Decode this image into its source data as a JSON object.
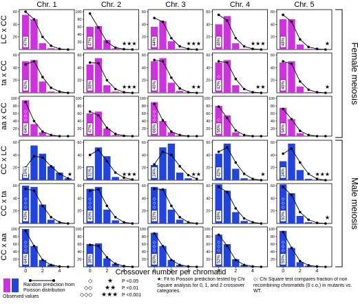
{
  "colors": {
    "female": "#cc33dd",
    "male": "#2244dd",
    "poisson": "#000000"
  },
  "columns": [
    "Chr. 1",
    "Chr. 2",
    "Chr. 3",
    "Chr. 4",
    "Chr. 5"
  ],
  "sex_labels": {
    "female": "Female meiosis",
    "male": "Male meiosis"
  },
  "x_label": "Crossover number per chromatid",
  "legend": {
    "observed": "Observed values",
    "poisson": "Random prediction from Poisson distribution",
    "p1": "P <0.05",
    "p2": "P <0.01",
    "p3": "P <0.001",
    "star_note": "★: Fit to Poisson prediction tested by Chi Square analysis for 0, 1, and 2 crossover categories.",
    "diamond_note": "◇: Chi Square test compares fraction of non recombining chromatids (0 c.o.) in mutants vs. WT."
  },
  "chart_data": {
    "type": "bar",
    "layout_note": "6 rows (crosses) x 5 columns (chromosomes); each panel: bars = observed counts, line+dots = Poisson prediction",
    "x_ticks": [
      0,
      2,
      4
    ],
    "x": [
      0,
      1,
      2,
      3,
      4,
      5
    ],
    "panels": [
      {
        "row": "LC x CC",
        "sex": "female",
        "col": "Chr. 1",
        "ylim": [
          0,
          60
        ],
        "yticks": [
          "20",
          "40",
          "60"
        ],
        "observed": [
          55,
          48,
          10,
          2,
          0,
          0
        ],
        "poisson": [
          60,
          48,
          20,
          6,
          1,
          0
        ],
        "pct": "47%",
        "stars": "",
        "diamonds": ""
      },
      {
        "row": "LC x CC",
        "sex": "female",
        "col": "Chr. 2",
        "ylim": [
          0,
          100
        ],
        "yticks": [
          "20",
          "40",
          "60",
          "80",
          "100"
        ],
        "observed": [
          60,
          62,
          25,
          3,
          1,
          0
        ],
        "poisson": [
          95,
          58,
          20,
          5,
          1,
          0
        ],
        "pct": "47%",
        "stars": "★★★",
        "diamonds": ""
      },
      {
        "row": "LC x CC",
        "sex": "female",
        "col": "Chr. 3",
        "ylim": [
          0,
          60
        ],
        "yticks": [
          "20",
          "40",
          "60"
        ],
        "observed": [
          36,
          45,
          13,
          1,
          0,
          0
        ],
        "poisson": [
          50,
          44,
          18,
          5,
          1,
          0
        ],
        "pct": "44%",
        "stars": "★★★",
        "diamonds": ""
      },
      {
        "row": "LC x CC",
        "sex": "female",
        "col": "Chr. 4",
        "ylim": [
          0,
          60
        ],
        "yticks": [
          "20",
          "40",
          "60"
        ],
        "observed": [
          40,
          53,
          10,
          1,
          0,
          0
        ],
        "poisson": [
          55,
          46,
          18,
          5,
          1,
          0
        ],
        "pct": "46%",
        "stars": "★★★",
        "diamonds": ""
      },
      {
        "row": "LC x CC",
        "sex": "female",
        "col": "Chr. 5",
        "ylim": [
          0,
          60
        ],
        "yticks": [
          "20",
          "40",
          "60"
        ],
        "observed": [
          48,
          48,
          8,
          1,
          0,
          0
        ],
        "poisson": [
          55,
          44,
          16,
          4,
          1,
          0
        ],
        "pct": "48%",
        "stars": "★",
        "diamonds": ""
      },
      {
        "row": "ta x CC",
        "sex": "female",
        "col": "Chr. 1",
        "ylim": [
          0,
          60
        ],
        "yticks": [
          "20",
          "40",
          "60"
        ],
        "observed": [
          50,
          52,
          18,
          2,
          0,
          0
        ],
        "poisson": [
          45,
          50,
          25,
          8,
          2,
          0
        ],
        "pct": "42%",
        "stars": "",
        "diamonds": ""
      },
      {
        "row": "ta x CC",
        "sex": "female",
        "col": "Chr. 2",
        "ylim": [
          0,
          60
        ],
        "yticks": [
          "20",
          "40",
          "60"
        ],
        "observed": [
          45,
          55,
          12,
          2,
          0,
          0
        ],
        "poisson": [
          48,
          47,
          20,
          6,
          1,
          0
        ],
        "pct": "38%",
        "stars": "★★★",
        "diamonds": ""
      },
      {
        "row": "ta x CC",
        "sex": "female",
        "col": "Chr. 3",
        "ylim": [
          0,
          60
        ],
        "yticks": [
          "20",
          "40",
          "60"
        ],
        "observed": [
          50,
          55,
          16,
          3,
          0,
          0
        ],
        "poisson": [
          52,
          50,
          24,
          7,
          1,
          0
        ],
        "pct": "49%",
        "stars": "★★",
        "diamonds": ""
      },
      {
        "row": "ta x CC",
        "sex": "female",
        "col": "Chr. 4",
        "ylim": [
          0,
          60
        ],
        "yticks": [
          "20",
          "40",
          "60"
        ],
        "observed": [
          48,
          52,
          12,
          1,
          0,
          0
        ],
        "poisson": [
          50,
          48,
          22,
          6,
          1,
          0
        ],
        "pct": "42%",
        "stars": "★★",
        "diamonds": "◇"
      },
      {
        "row": "ta x CC",
        "sex": "female",
        "col": "Chr. 5",
        "ylim": [
          0,
          60
        ],
        "yticks": [
          "20",
          "40",
          "60"
        ],
        "observed": [
          48,
          50,
          10,
          1,
          0,
          0
        ],
        "poisson": [
          50,
          46,
          18,
          5,
          1,
          0
        ],
        "pct": "49%",
        "stars": "★",
        "diamonds": ""
      },
      {
        "row": "aa x CC",
        "sex": "female",
        "col": "Chr. 1",
        "ylim": [
          0,
          100
        ],
        "yticks": [
          "20",
          "40",
          "60",
          "80",
          "100"
        ],
        "observed": [
          95,
          32,
          10,
          2,
          0,
          0
        ],
        "poisson": [
          90,
          40,
          12,
          3,
          0,
          0
        ],
        "pct": "64%",
        "stars": "",
        "diamonds": "◇◇◇"
      },
      {
        "row": "aa x CC",
        "sex": "female",
        "col": "Chr. 2",
        "ylim": [
          0,
          100
        ],
        "yticks": [
          "20",
          "40",
          "60",
          "80",
          "100"
        ],
        "observed": [
          60,
          65,
          20,
          3,
          0,
          0
        ],
        "poisson": [
          65,
          55,
          22,
          6,
          1,
          0
        ],
        "pct": "47%",
        "stars": "",
        "diamonds": ""
      },
      {
        "row": "aa x CC",
        "sex": "female",
        "col": "Chr. 3",
        "ylim": [
          0,
          100
        ],
        "yticks": [
          "20",
          "40",
          "60",
          "80",
          "100"
        ],
        "observed": [
          90,
          40,
          10,
          2,
          0,
          0
        ],
        "poisson": [
          85,
          42,
          12,
          3,
          0,
          0
        ],
        "pct": "66%",
        "stars": "",
        "diamonds": "◇◇◇"
      },
      {
        "row": "aa x CC",
        "sex": "female",
        "col": "Chr. 4",
        "ylim": [
          0,
          100
        ],
        "yticks": [
          "20",
          "40",
          "60",
          "80",
          "100"
        ],
        "observed": [
          80,
          55,
          10,
          1,
          0,
          0
        ],
        "poisson": [
          78,
          48,
          15,
          3,
          0,
          0
        ],
        "pct": "56%",
        "stars": "",
        "diamonds": "◇"
      },
      {
        "row": "aa x CC",
        "sex": "female",
        "col": "Chr. 5",
        "ylim": [
          0,
          100
        ],
        "yticks": [
          "20",
          "40",
          "60",
          "80",
          "100"
        ],
        "observed": [
          75,
          45,
          8,
          1,
          0,
          0
        ],
        "poisson": [
          72,
          45,
          14,
          3,
          0,
          0
        ],
        "pct": "54%",
        "stars": "",
        "diamonds": ""
      },
      {
        "row": "CC x LC",
        "sex": "male",
        "col": "Chr. 1",
        "ylim": [
          0,
          60
        ],
        "yticks": [
          "20",
          "40",
          "60"
        ],
        "observed": [
          10,
          55,
          42,
          22,
          12,
          3
        ],
        "poisson": [
          20,
          38,
          36,
          22,
          10,
          3
        ],
        "pct": "15%",
        "stars": "★",
        "diamonds": ""
      },
      {
        "row": "CC x LC",
        "sex": "male",
        "col": "Chr. 2",
        "ylim": [
          0,
          60
        ],
        "yticks": [
          "20",
          "40",
          "60"
        ],
        "observed": [
          22,
          52,
          38,
          5,
          1,
          0
        ],
        "poisson": [
          40,
          48,
          30,
          12,
          4,
          1
        ],
        "pct": "31%",
        "stars": "★★★",
        "diamonds": ""
      },
      {
        "row": "CC x LC",
        "sex": "male",
        "col": "Chr. 3",
        "ylim": [
          0,
          60
        ],
        "yticks": [
          "20",
          "40",
          "60"
        ],
        "observed": [
          24,
          52,
          58,
          12,
          3,
          0
        ],
        "poisson": [
          25,
          45,
          40,
          22,
          8,
          2
        ],
        "pct": "24%",
        "stars": "★★",
        "diamonds": ""
      },
      {
        "row": "CC x LC",
        "sex": "male",
        "col": "Chr. 4",
        "ylim": [
          0,
          60
        ],
        "yticks": [
          "20",
          "40",
          "60"
        ],
        "observed": [
          42,
          58,
          18,
          3,
          1,
          0
        ],
        "poisson": [
          45,
          52,
          28,
          10,
          2,
          0
        ],
        "pct": "42%",
        "stars": "★",
        "diamonds": ""
      },
      {
        "row": "CC x LC",
        "sex": "male",
        "col": "Chr. 5",
        "ylim": [
          0,
          60
        ],
        "yticks": [
          "20",
          "40",
          "60"
        ],
        "observed": [
          30,
          58,
          16,
          2,
          0,
          0
        ],
        "poisson": [
          42,
          50,
          28,
          10,
          2,
          0
        ],
        "pct": "24%",
        "stars": "★★★",
        "diamonds": ""
      },
      {
        "row": "CC x ta",
        "sex": "male",
        "col": "Chr. 1",
        "ylim": [
          0,
          60
        ],
        "yticks": [
          "20",
          "40",
          "60"
        ],
        "observed": [
          60,
          58,
          30,
          6,
          1,
          0
        ],
        "poisson": [
          55,
          52,
          28,
          10,
          2,
          0
        ],
        "pct": "43%",
        "stars": "",
        "diamonds": "◇◇◇"
      },
      {
        "row": "CC x ta",
        "sex": "male",
        "col": "Chr. 2",
        "ylim": [
          0,
          60
        ],
        "yticks": [
          "20",
          "40",
          "60"
        ],
        "observed": [
          55,
          58,
          22,
          5,
          1,
          0
        ],
        "poisson": [
          52,
          54,
          28,
          10,
          2,
          0
        ],
        "pct": "40%",
        "stars": "",
        "diamonds": "◇◇◇"
      },
      {
        "row": "CC x ta",
        "sex": "male",
        "col": "Chr. 3",
        "ylim": [
          0,
          60
        ],
        "yticks": [
          "20",
          "40",
          "60"
        ],
        "observed": [
          58,
          55,
          22,
          6,
          1,
          0
        ],
        "poisson": [
          55,
          54,
          28,
          10,
          2,
          0
        ],
        "pct": "52%",
        "stars": "",
        "diamonds": "◇◇◇"
      },
      {
        "row": "CC x ta",
        "sex": "male",
        "col": "Chr. 4",
        "ylim": [
          0,
          60
        ],
        "yticks": [
          "20",
          "40",
          "60"
        ],
        "observed": [
          62,
          52,
          18,
          4,
          1,
          0
        ],
        "poisson": [
          58,
          50,
          24,
          8,
          2,
          0
        ],
        "pct": "48%",
        "stars": "",
        "diamonds": ""
      },
      {
        "row": "CC x ta",
        "sex": "male",
        "col": "Chr. 5",
        "ylim": [
          0,
          60
        ],
        "yticks": [
          "20",
          "40",
          "60"
        ],
        "observed": [
          62,
          48,
          12,
          2,
          0,
          0
        ],
        "poisson": [
          58,
          45,
          18,
          6,
          1,
          0
        ],
        "pct": "50%",
        "stars": "★",
        "diamonds": "◇◇◇"
      },
      {
        "row": "CC x aa",
        "sex": "male",
        "col": "Chr. 1",
        "ylim": [
          0,
          100
        ],
        "yticks": [
          "20",
          "40",
          "60",
          "80",
          "100"
        ],
        "observed": [
          100,
          55,
          18,
          6,
          1,
          0
        ],
        "poisson": [
          95,
          55,
          18,
          5,
          1,
          0
        ],
        "pct": "64%",
        "stars": "",
        "diamonds": "◇◇◇"
      },
      {
        "row": "CC x aa",
        "sex": "male",
        "col": "Chr. 2",
        "ylim": [
          0,
          100
        ],
        "yticks": [
          "20",
          "40",
          "60",
          "80",
          "100"
        ],
        "observed": [
          60,
          62,
          22,
          8,
          2,
          0
        ],
        "poisson": [
          58,
          55,
          25,
          8,
          2,
          0
        ],
        "pct": "38%",
        "stars": "",
        "diamonds": ""
      },
      {
        "row": "CC x aa",
        "sex": "male",
        "col": "Chr. 3",
        "ylim": [
          0,
          100
        ],
        "yticks": [
          "20",
          "40",
          "60",
          "80",
          "100"
        ],
        "observed": [
          90,
          55,
          18,
          5,
          1,
          0
        ],
        "poisson": [
          88,
          55,
          18,
          5,
          1,
          0
        ],
        "pct": "60%",
        "stars": "",
        "diamonds": "◇◇◇"
      },
      {
        "row": "CC x aa",
        "sex": "male",
        "col": "Chr. 4",
        "ylim": [
          0,
          100
        ],
        "yticks": [
          "20",
          "40",
          "60",
          "80",
          "100"
        ],
        "observed": [
          85,
          60,
          20,
          5,
          1,
          0
        ],
        "poisson": [
          85,
          55,
          18,
          5,
          1,
          0
        ],
        "pct": "52%",
        "stars": "",
        "diamonds": "◇◇◇"
      },
      {
        "row": "CC x aa",
        "sex": "male",
        "col": "Chr. 5",
        "ylim": [
          0,
          100
        ],
        "yticks": [
          "20",
          "40",
          "60",
          "80",
          "100"
        ],
        "observed": [
          95,
          50,
          12,
          3,
          0,
          0
        ],
        "poisson": [
          92,
          50,
          15,
          4,
          1,
          0
        ],
        "pct": "59%",
        "stars": "",
        "diamonds": "◇◇◇"
      }
    ]
  }
}
